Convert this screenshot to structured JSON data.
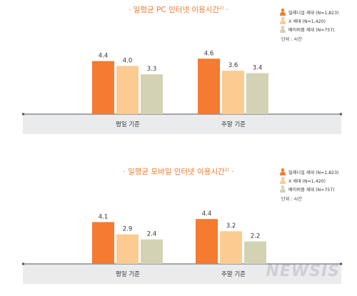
{
  "colors": {
    "title": "#f07a2a",
    "millennial": "#f47b2f",
    "genx": "#fbcb92",
    "boomer": "#d3d2b5",
    "axis_band": "#eaebed",
    "axis_line": "#555555",
    "text": "#333333"
  },
  "legend_markers": {
    "millennial": "person-icon-orange",
    "genx": "person-icon-peach",
    "boomer": "person-icon-beige"
  },
  "watermark": "NEWSIS",
  "chart_data": [
    {
      "type": "bar",
      "title": "· 일평균 PC 인터넷 이용시간",
      "title_note": "2)",
      "title_suffix": " ·",
      "categories": [
        "평일 기준",
        "주말 기준"
      ],
      "series": [
        {
          "name": "밀레니얼 세대 (N=1,823)",
          "values": [
            4.4,
            4.6
          ]
        },
        {
          "name": "X 세대 (N=1,420)",
          "values": [
            4.0,
            3.6
          ]
        },
        {
          "name": "베이비붐 세대 (N=757)",
          "values": [
            3.3,
            3.4
          ]
        }
      ],
      "value_labels": [
        [
          "4.4",
          "4.6"
        ],
        [
          "4.0",
          "3.6"
        ],
        [
          "3.3",
          "3.4"
        ]
      ],
      "unit_label": "단위 : 시간",
      "legend_position": "top-right",
      "grid": false
    },
    {
      "type": "bar",
      "title": "· 일평균 모바일 인터넷 이용시간",
      "title_note": "2)",
      "title_suffix": " ·",
      "categories": [
        "평일 기준",
        "주말 기준"
      ],
      "series": [
        {
          "name": "밀레니얼 세대 (N=1,823)",
          "values": [
            4.1,
            4.4
          ]
        },
        {
          "name": "X 세대 (N=1,420)",
          "values": [
            2.9,
            3.2
          ]
        },
        {
          "name": "베이비붐 세대 (N=757)",
          "values": [
            2.4,
            2.2
          ]
        }
      ],
      "value_labels": [
        [
          "4.1",
          "4.4"
        ],
        [
          "2.9",
          "3.2"
        ],
        [
          "2.4",
          "2.2"
        ]
      ],
      "unit_label": "단위 : 시간",
      "legend_position": "top-right",
      "grid": false
    }
  ]
}
